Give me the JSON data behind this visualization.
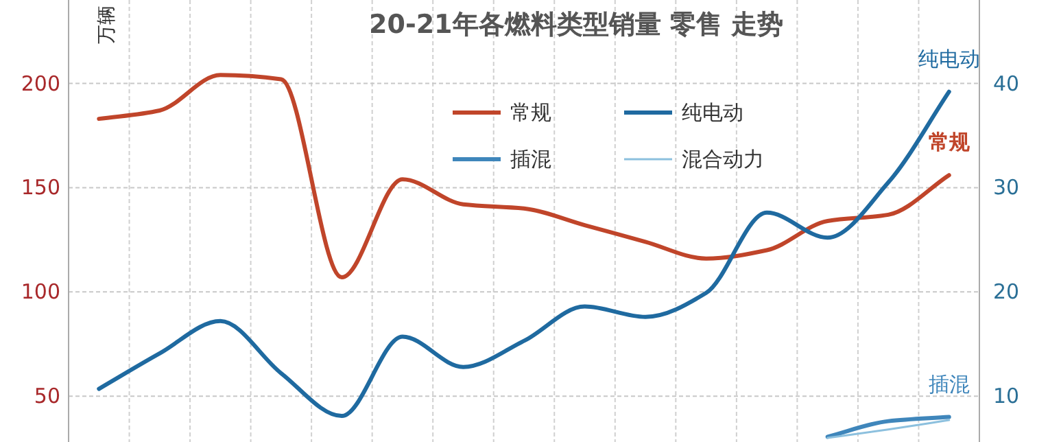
{
  "chart_data": {
    "type": "line",
    "title": "20-21年各燃料类型销量 零售 走势",
    "ylabel": "万辆",
    "categories": [
      null,
      null,
      null,
      null,
      null,
      null,
      null,
      null,
      null,
      null,
      null,
      null,
      null,
      null,
      null
    ],
    "series": [
      {
        "name": "常规",
        "color": "#c0452a",
        "values": [
          183,
          187,
          204,
          202,
          107,
          154,
          142,
          140,
          132,
          124,
          116,
          120,
          134,
          137,
          156
        ]
      },
      {
        "name": "纯电动",
        "color": "#1f6aa0",
        "axis": "y2",
        "values": [
          10.7,
          14.1,
          17.2,
          12.2,
          8.1,
          15.7,
          12.8,
          15.3,
          18.6,
          17.6,
          19.9,
          27.6,
          25.2,
          30.5,
          39.2
        ]
      },
      {
        "name": "插混",
        "color": "#3f86bb",
        "axis": "y2",
        "values": [
          null,
          null,
          null,
          null,
          null,
          null,
          null,
          null,
          null,
          null,
          null,
          null,
          6.1,
          7.6,
          8.0
        ]
      },
      {
        "name": "混合动力",
        "color": "#8cc0de",
        "axis": "y2",
        "values": [
          null,
          null,
          null,
          null,
          null,
          null,
          null,
          null,
          null,
          null,
          null,
          null,
          6.0,
          6.8,
          7.7
        ]
      }
    ],
    "ylim": [
      28,
      240
    ],
    "yticks": [
      50,
      100,
      150,
      200
    ],
    "y2lim": [
      5.6,
      48
    ],
    "y2ticks": [
      10,
      20,
      30,
      40
    ],
    "annotations": [
      "纯电动",
      "常规",
      "插混"
    ],
    "grid": true,
    "legend": "top",
    "line_style": "solid",
    "marker": "none"
  }
}
